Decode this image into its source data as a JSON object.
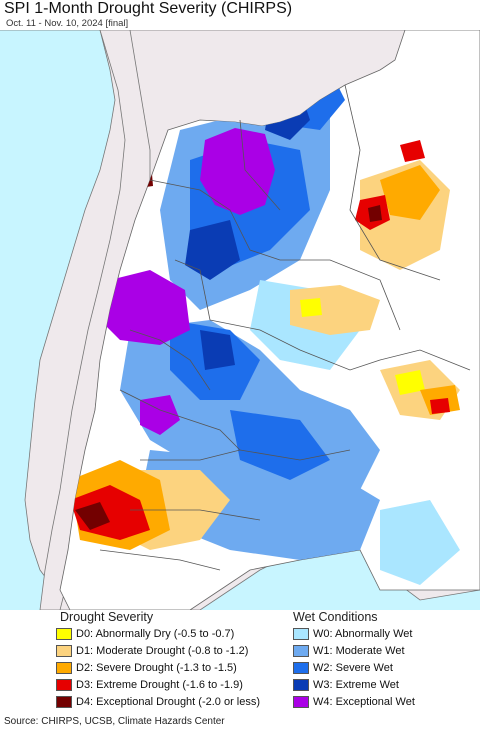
{
  "title": "SPI 1-Month Drought Severity (CHIRPS)",
  "subtitle": "Oct. 11 - Nov. 10, 2024 [final]",
  "legend": {
    "drought_heading": "Drought Severity",
    "wet_heading": "Wet Conditions",
    "drought_items": [
      {
        "label": "D0: Abnormally Dry (-0.5 to -0.7)",
        "color": "#ffff00"
      },
      {
        "label": "D1: Moderate Drought (-0.8 to -1.2)",
        "color": "#fcd37f"
      },
      {
        "label": "D2: Severe Drought (-1.3 to -1.5)",
        "color": "#ffaa00"
      },
      {
        "label": "D3: Extreme Drought (-1.6 to -1.9)",
        "color": "#e60000"
      },
      {
        "label": "D4: Exceptional Drought (-2.0 or less)",
        "color": "#730000"
      }
    ],
    "wet_items": [
      {
        "label": "W0: Abnormally Wet",
        "color": "#aae6ff"
      },
      {
        "label": "W1: Moderate Wet",
        "color": "#6eaaf0"
      },
      {
        "label": "W2: Severe Wet",
        "color": "#1e6eeb"
      },
      {
        "label": "W3: Extreme Wet",
        "color": "#0a3cb4"
      },
      {
        "label": "W4: Exceptional Wet",
        "color": "#aa00e6"
      }
    ]
  },
  "colors": {
    "ocean": "#c8f5ff",
    "land_outside": "#efe9ec",
    "land_normal": "#ffffff",
    "borders": "#555555"
  },
  "source": "Source: CHIRPS, UCSB, Climate Hazards Center"
}
